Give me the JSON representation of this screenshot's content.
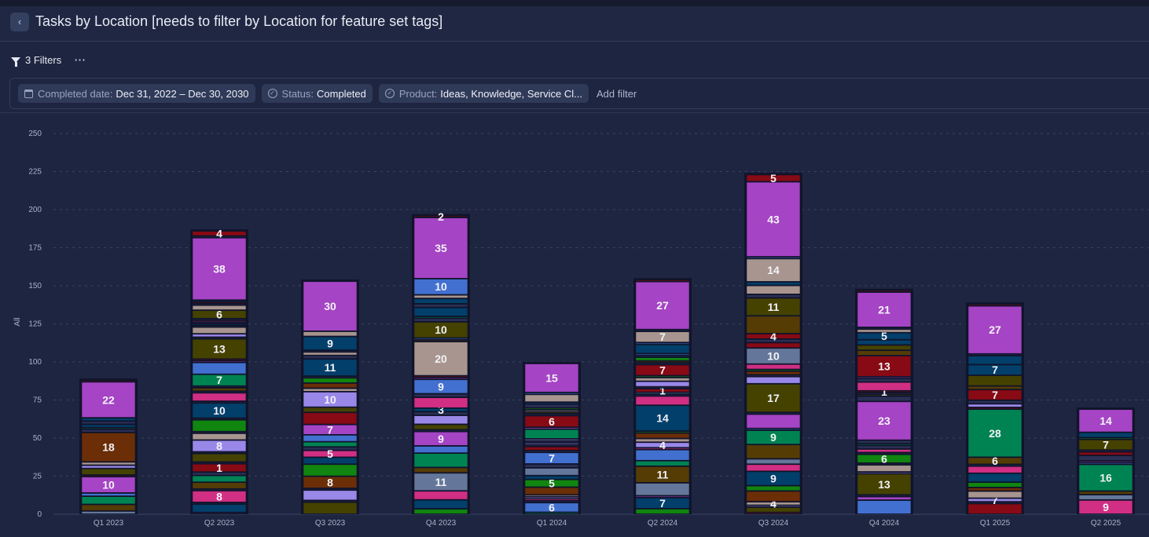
{
  "header": {
    "title": "Tasks by Location [needs to filter by Location for feature set tags]",
    "back_icon": "chevron-left-icon"
  },
  "filters": {
    "count_label": "3 Filters",
    "more_label": "⋯",
    "chips": [
      {
        "key": "Completed date:",
        "value": "Dec 31, 2022 – Dec 30, 2030",
        "icon": "calendar-icon"
      },
      {
        "key": "Status:",
        "value": "Completed",
        "icon": "check-circle-icon"
      },
      {
        "key": "Product:",
        "value": "Ideas, Knowledge, Service Cl...",
        "icon": "check-circle-icon"
      }
    ],
    "add_label": "Add filter"
  },
  "chart_data": {
    "type": "bar",
    "stacked": true,
    "ylabel": "All",
    "xlabel": "",
    "ylim": [
      0,
      250
    ],
    "yticks": [
      0,
      25,
      50,
      75,
      100,
      125,
      150,
      175,
      200,
      225,
      250
    ],
    "grid": true,
    "colors": {
      "P": "#a544c4",
      "M": "#d02f83",
      "B": "#4270d0",
      "N": "#023f6a",
      "G": "#10850f",
      "T": "#008353",
      "O": "#454200",
      "W": "#553c04",
      "R": "#6b2e06",
      "X": "#870a14",
      "K": "#a8958f",
      "L": "#9988e8",
      "S": "#64779a",
      "D": "#2a2f55"
    },
    "categories": [
      "Q1 2023",
      "Q2 2023",
      "Q3 2023",
      "Q4 2023",
      "Q1 2024",
      "Q2 2024",
      "Q3 2024",
      "Q4 2024",
      "Q1 2025",
      "Q2 2025"
    ],
    "totals": [
      88,
      186,
      153,
      196,
      99,
      154,
      223,
      147,
      138,
      69
    ],
    "stacks": [
      [
        [
          2,
          "S"
        ],
        [
          4,
          "W"
        ],
        [
          5,
          "T"
        ],
        [
          2,
          "B"
        ],
        [
          10,
          "P",
          "10"
        ],
        [
          1,
          "X"
        ],
        [
          4,
          "O"
        ],
        [
          2,
          "L"
        ],
        [
          2,
          "K"
        ],
        [
          18,
          "R",
          "18"
        ],
        [
          2,
          "D"
        ],
        [
          1,
          "T"
        ],
        [
          2,
          "N"
        ],
        [
          2,
          "D"
        ],
        [
          2,
          "N"
        ],
        [
          22,
          "P",
          "22"
        ],
        [
          1,
          "X"
        ]
      ],
      [
        [
          1,
          "D"
        ],
        [
          5,
          "N"
        ],
        [
          1,
          "D"
        ],
        [
          7,
          "M",
          "8"
        ],
        [
          1,
          "D"
        ],
        [
          4,
          "W"
        ],
        [
          4,
          "T"
        ],
        [
          2,
          "D"
        ],
        [
          5,
          "X",
          "1"
        ],
        [
          1,
          "D"
        ],
        [
          5,
          "O"
        ],
        [
          1,
          "D"
        ],
        [
          7,
          "L",
          "8"
        ],
        [
          4,
          "K"
        ],
        [
          1,
          "D"
        ],
        [
          7,
          "G"
        ],
        [
          1,
          "D"
        ],
        [
          9,
          "N",
          "10"
        ],
        [
          1,
          "D"
        ],
        [
          5,
          "M"
        ],
        [
          1,
          "D"
        ],
        [
          2,
          "W"
        ],
        [
          1,
          "D"
        ],
        [
          7,
          "T",
          "7"
        ],
        [
          7,
          "B"
        ],
        [
          1,
          "P"
        ],
        [
          1,
          "X"
        ],
        [
          12,
          "O",
          "13"
        ],
        [
          1,
          "D"
        ],
        [
          2,
          "L"
        ],
        [
          4,
          "K"
        ],
        [
          1,
          "D"
        ],
        [
          1,
          "N"
        ],
        [
          1,
          "D"
        ],
        [
          1,
          "M"
        ],
        [
          1,
          "D"
        ],
        [
          5,
          "O",
          "6"
        ],
        [
          3,
          "K"
        ],
        [
          1,
          "D"
        ],
        [
          1,
          "X"
        ],
        [
          1,
          "N"
        ],
        [
          37,
          "P",
          "38"
        ],
        [
          1,
          "D"
        ],
        [
          3,
          "X",
          "4"
        ]
      ],
      [
        [
          7,
          "O"
        ],
        [
          1,
          "D"
        ],
        [
          6,
          "L"
        ],
        [
          1,
          "D"
        ],
        [
          7,
          "R",
          "8"
        ],
        [
          7,
          "G"
        ],
        [
          4,
          "N"
        ],
        [
          4,
          "M",
          "5"
        ],
        [
          2,
          "D"
        ],
        [
          3,
          "T"
        ],
        [
          4,
          "B"
        ],
        [
          6,
          "P",
          "7"
        ],
        [
          7,
          "X"
        ],
        [
          3,
          "O"
        ],
        [
          9,
          "L",
          "10"
        ],
        [
          2,
          "K"
        ],
        [
          3,
          "R"
        ],
        [
          3,
          "G"
        ],
        [
          1,
          "D"
        ],
        [
          10,
          "N",
          "11"
        ],
        [
          2,
          "D"
        ],
        [
          2,
          "K"
        ],
        [
          1,
          "D"
        ],
        [
          8,
          "N",
          "9"
        ],
        [
          3,
          "K"
        ],
        [
          29,
          "P",
          "30"
        ]
      ],
      [
        [
          3,
          "G"
        ],
        [
          5,
          "N"
        ],
        [
          5,
          "M"
        ],
        [
          10,
          "S",
          "11"
        ],
        [
          3,
          "W"
        ],
        [
          8,
          "T"
        ],
        [
          4,
          "B"
        ],
        [
          8,
          "P",
          "9"
        ],
        [
          1,
          "D"
        ],
        [
          3,
          "O"
        ],
        [
          5,
          "L"
        ],
        [
          2,
          "D"
        ],
        [
          2,
          "N",
          "3"
        ],
        [
          6,
          "M"
        ],
        [
          2,
          "D"
        ],
        [
          8,
          "B",
          "9"
        ],
        [
          1,
          "P"
        ],
        [
          1,
          "X"
        ],
        [
          19,
          "K",
          "20"
        ],
        [
          1,
          "W"
        ],
        [
          1,
          "B"
        ],
        [
          9,
          "O",
          "10"
        ],
        [
          2,
          "D"
        ],
        [
          1,
          "T"
        ],
        [
          5,
          "N"
        ],
        [
          2,
          "D"
        ],
        [
          3,
          "N"
        ],
        [
          2,
          "K"
        ],
        [
          9,
          "B",
          "10"
        ],
        [
          34,
          "P",
          "35"
        ],
        [
          1,
          "X",
          "2"
        ]
      ],
      [
        [
          1,
          "T"
        ],
        [
          5,
          "B",
          "6"
        ],
        [
          1,
          "D"
        ],
        [
          1,
          "M"
        ],
        [
          1,
          "L"
        ],
        [
          1,
          "K"
        ],
        [
          4,
          "R"
        ],
        [
          4,
          "G",
          "5"
        ],
        [
          2,
          "N"
        ],
        [
          4,
          "S"
        ],
        [
          2,
          "D"
        ],
        [
          6,
          "B",
          "7"
        ],
        [
          1,
          "D"
        ],
        [
          2,
          "X"
        ],
        [
          1,
          "D"
        ],
        [
          1,
          "L"
        ],
        [
          1,
          "D"
        ],
        [
          1,
          "L"
        ],
        [
          5,
          "T"
        ],
        [
          1,
          "P"
        ],
        [
          6,
          "X",
          "6"
        ],
        [
          1,
          "D"
        ],
        [
          1,
          "O"
        ],
        [
          1,
          "K"
        ],
        [
          1,
          "G"
        ],
        [
          2,
          "D"
        ],
        [
          1,
          "N"
        ],
        [
          4,
          "K"
        ],
        [
          1,
          "B"
        ],
        [
          15,
          "P",
          "15"
        ]
      ],
      [
        [
          3,
          "G"
        ],
        [
          6,
          "N",
          "7"
        ],
        [
          1,
          "P"
        ],
        [
          7,
          "S"
        ],
        [
          9,
          "W",
          "11"
        ],
        [
          3,
          "T"
        ],
        [
          6,
          "B"
        ],
        [
          1,
          "M"
        ],
        [
          3,
          "L",
          "4"
        ],
        [
          2,
          "K"
        ],
        [
          3,
          "R"
        ],
        [
          1,
          "G"
        ],
        [
          14,
          "N",
          "14"
        ],
        [
          5,
          "M"
        ],
        [
          1,
          "D"
        ],
        [
          1,
          "S"
        ],
        [
          2,
          "X",
          "1"
        ],
        [
          1,
          "D"
        ],
        [
          3,
          "L"
        ],
        [
          2,
          "K"
        ],
        [
          1,
          "G"
        ],
        [
          6,
          "X",
          "7"
        ],
        [
          1,
          "D"
        ],
        [
          1,
          "W"
        ],
        [
          2,
          "G"
        ],
        [
          1,
          "N"
        ],
        [
          1,
          "B"
        ],
        [
          5,
          "N"
        ],
        [
          1,
          "B"
        ],
        [
          6,
          "K",
          "7"
        ],
        [
          1,
          "D"
        ],
        [
          26,
          "P",
          "27"
        ],
        [
          1,
          "X"
        ]
      ],
      [
        [
          1,
          "X"
        ],
        [
          3,
          "O"
        ],
        [
          1,
          "L"
        ],
        [
          2,
          "K",
          "4"
        ],
        [
          6,
          "R"
        ],
        [
          3,
          "G"
        ],
        [
          8,
          "N",
          "9"
        ],
        [
          4,
          "M"
        ],
        [
          3,
          "S"
        ],
        [
          8,
          "W"
        ],
        [
          8,
          "T",
          "9"
        ],
        [
          1,
          "B"
        ],
        [
          8,
          "P"
        ],
        [
          1,
          "D"
        ],
        [
          16,
          "O",
          "17"
        ],
        [
          4,
          "L"
        ],
        [
          1,
          "D"
        ],
        [
          2,
          "R"
        ],
        [
          1,
          "G"
        ],
        [
          3,
          "M"
        ],
        [
          9,
          "S",
          "10"
        ],
        [
          3,
          "X"
        ],
        [
          2,
          "D"
        ],
        [
          3,
          "X",
          "4"
        ],
        [
          10,
          "W"
        ],
        [
          10,
          "O",
          "11"
        ],
        [
          2,
          "D"
        ],
        [
          5,
          "K"
        ],
        [
          2,
          "N"
        ],
        [
          13,
          "K",
          "14"
        ],
        [
          1,
          "B"
        ],
        [
          42,
          "P",
          "43"
        ],
        [
          4,
          "X",
          "5"
        ]
      ],
      [
        [
          8,
          "B"
        ],
        [
          2,
          "P"
        ],
        [
          1,
          "D"
        ],
        [
          12,
          "O",
          "13"
        ],
        [
          1,
          "L"
        ],
        [
          4,
          "K"
        ],
        [
          1,
          "D"
        ],
        [
          5,
          "G",
          "6"
        ],
        [
          1,
          "D"
        ],
        [
          2,
          "M"
        ],
        [
          2,
          "D"
        ],
        [
          1,
          "T"
        ],
        [
          2,
          "D"
        ],
        [
          22,
          "P",
          "23"
        ],
        [
          3,
          "D"
        ],
        [
          1,
          "W"
        ],
        [
          1,
          "D"
        ],
        [
          1,
          "X",
          "1"
        ],
        [
          5,
          "M"
        ],
        [
          2,
          "D"
        ],
        [
          1,
          "P"
        ],
        [
          12,
          "X",
          "13"
        ],
        [
          3,
          "W"
        ],
        [
          3,
          "O"
        ],
        [
          3,
          "N"
        ],
        [
          4,
          "N",
          "5"
        ],
        [
          2,
          "K"
        ],
        [
          1,
          "D"
        ],
        [
          20,
          "P",
          "21"
        ],
        [
          1,
          "X"
        ]
      ],
      [
        [
          6,
          "X"
        ],
        [
          1,
          "D"
        ],
        [
          2,
          "L",
          "7"
        ],
        [
          4,
          "K"
        ],
        [
          2,
          "R"
        ],
        [
          3,
          "G"
        ],
        [
          5,
          "N"
        ],
        [
          4,
          "M"
        ],
        [
          1,
          "D"
        ],
        [
          4,
          "W",
          "6"
        ],
        [
          27,
          "T",
          "28"
        ],
        [
          1,
          "X"
        ],
        [
          2,
          "L"
        ],
        [
          2,
          "D"
        ],
        [
          6,
          "X",
          "7"
        ],
        [
          2,
          "W"
        ],
        [
          6,
          "O"
        ],
        [
          6,
          "N",
          "7"
        ],
        [
          5,
          "N"
        ],
        [
          1,
          "D"
        ],
        [
          27,
          "P",
          "27"
        ],
        [
          1,
          "X"
        ]
      ],
      [
        [
          8,
          "M",
          "9"
        ],
        [
          3,
          "S"
        ],
        [
          2,
          "W"
        ],
        [
          15,
          "T",
          "16"
        ],
        [
          1,
          "B"
        ],
        [
          1,
          "P"
        ],
        [
          3,
          "D"
        ],
        [
          2,
          "X"
        ],
        [
          1,
          "D"
        ],
        [
          6,
          "O",
          "7"
        ],
        [
          1,
          "G"
        ],
        [
          3,
          "N"
        ],
        [
          13,
          "P",
          "14"
        ]
      ]
    ]
  }
}
